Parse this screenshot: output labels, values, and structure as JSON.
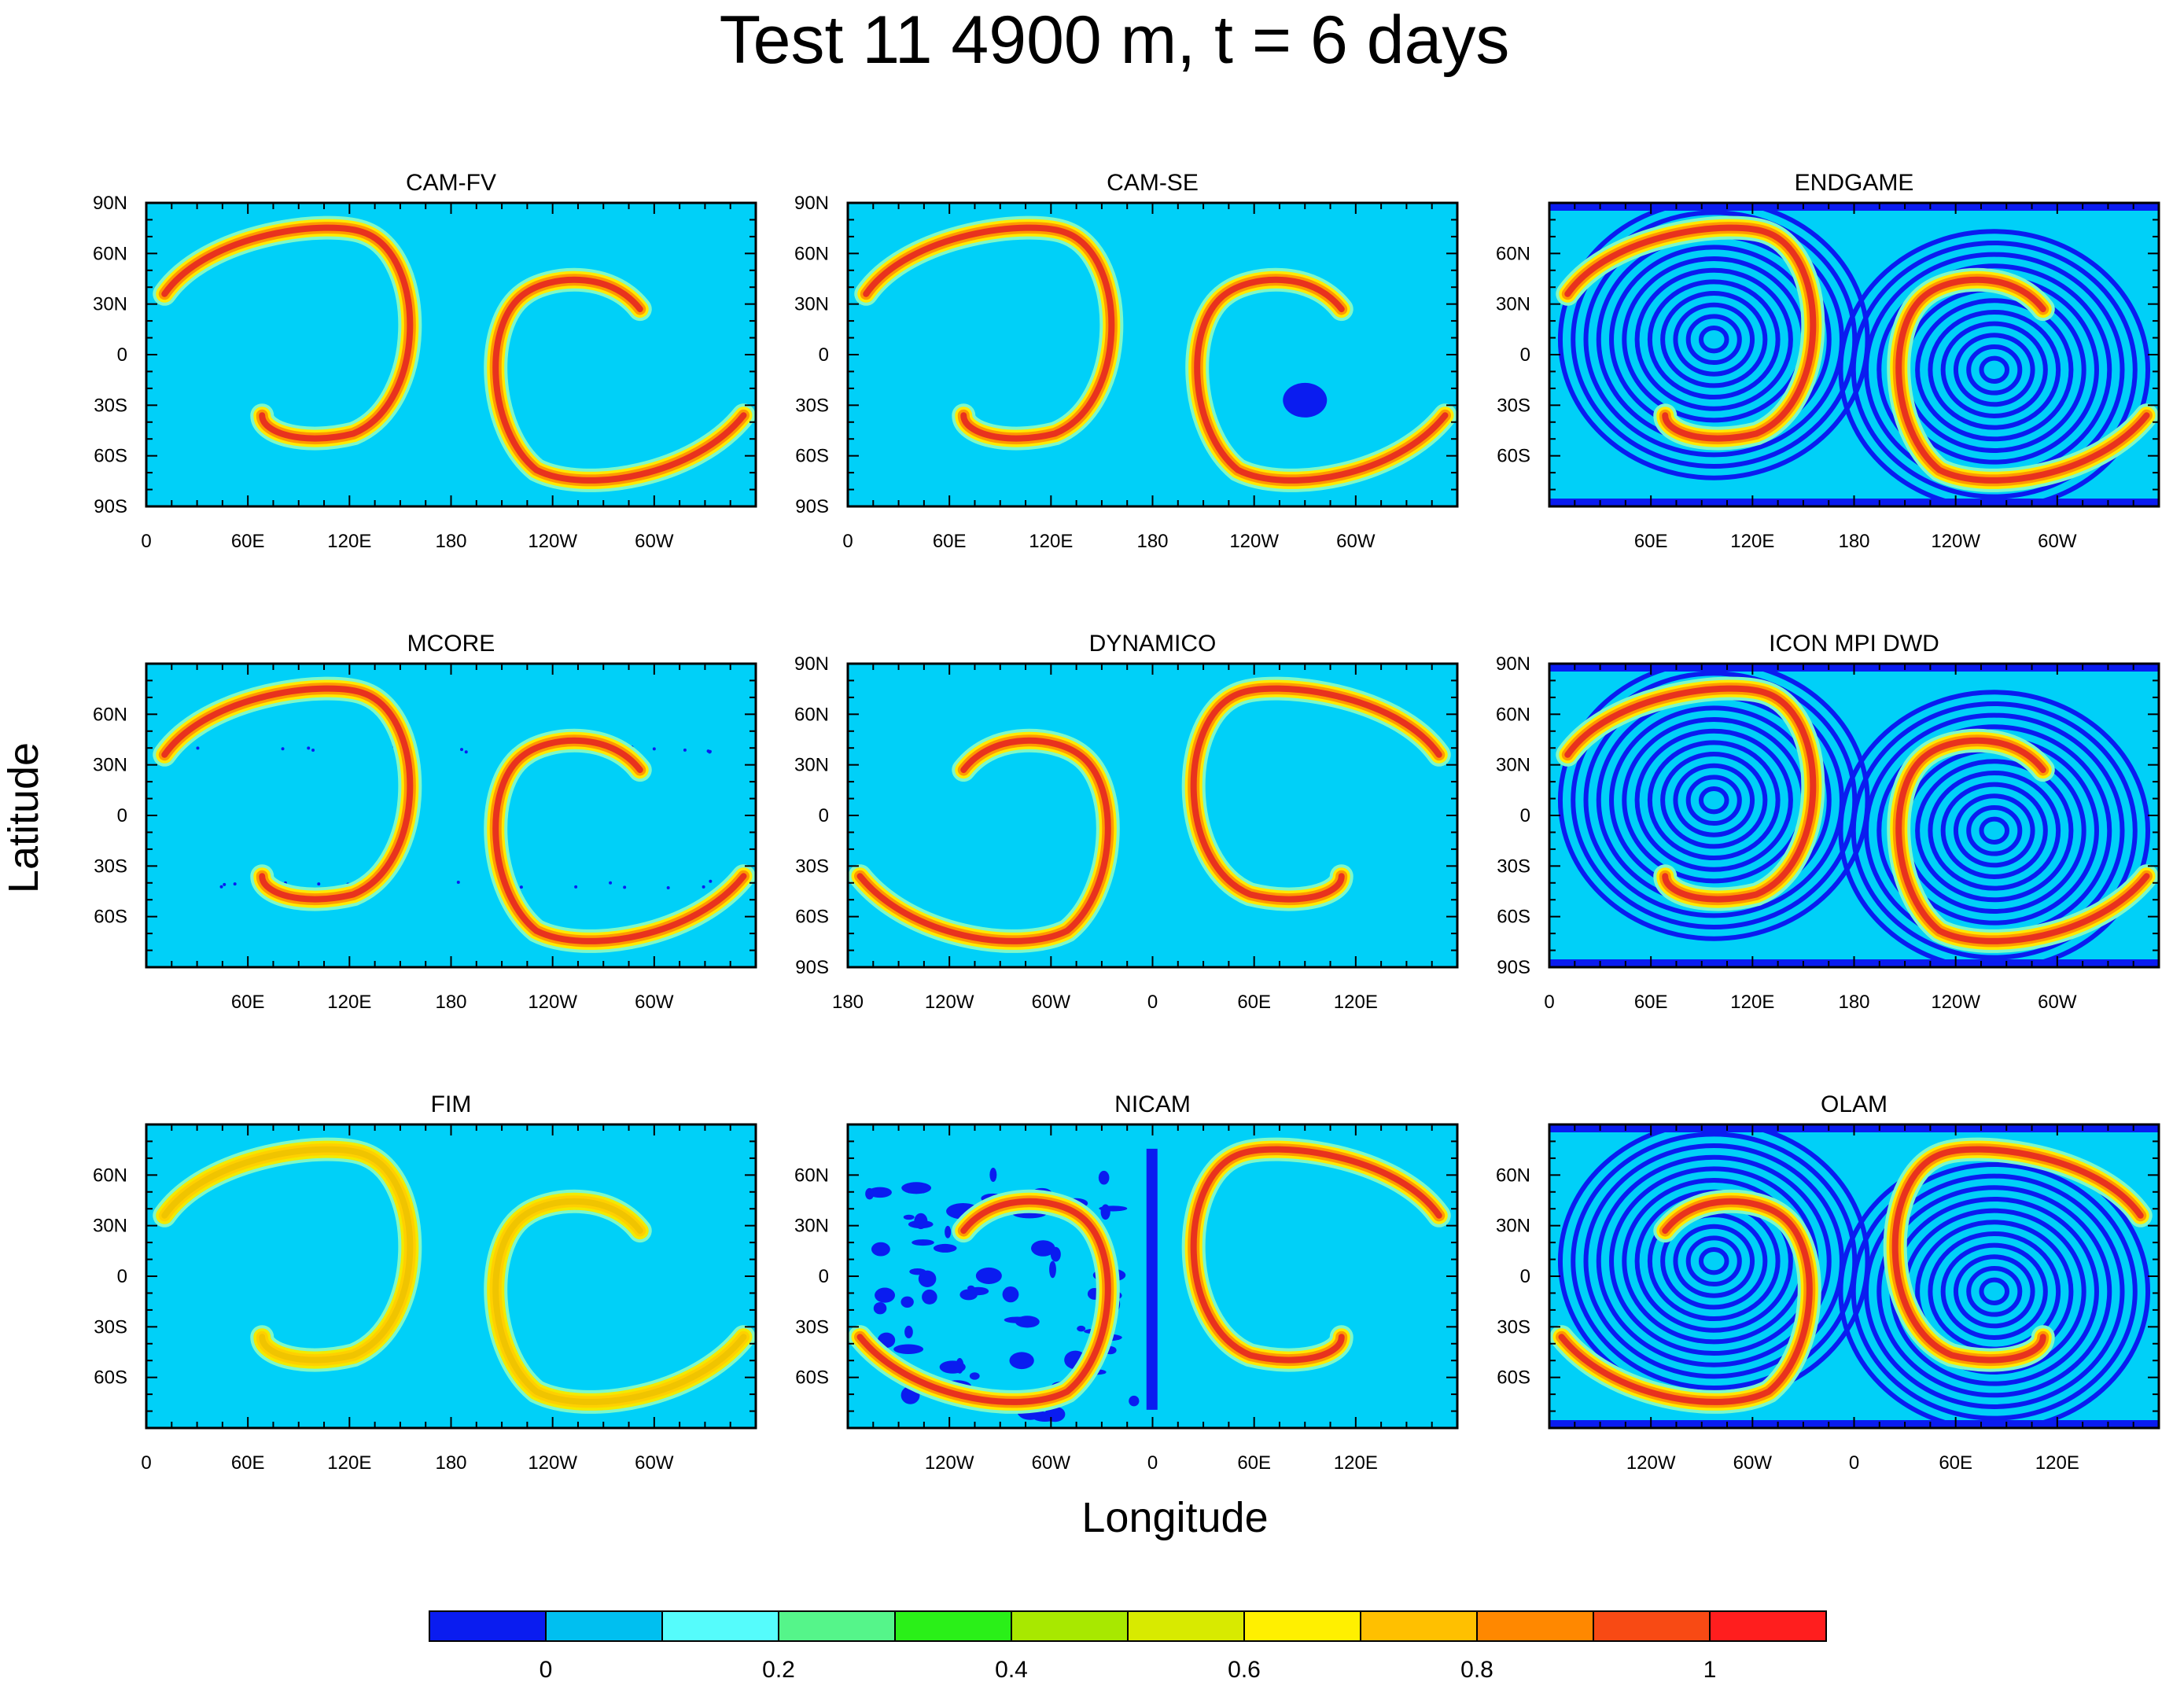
{
  "figure": {
    "title": "Test 11 4900 m, t = 6 days",
    "xlabel": "Longitude",
    "ylabel": "Latitude"
  },
  "colorbar": {
    "colors": [
      "#0a1cf0",
      "#00bff0",
      "#55fcfc",
      "#55f58a",
      "#2af018",
      "#a8e800",
      "#d8ea00",
      "#fff000",
      "#ffc000",
      "#ff8800",
      "#f84a14",
      "#ff1e1e"
    ],
    "tick_labels": [
      "0",
      "0.2",
      "0.4",
      "0.6",
      "0.8",
      "1"
    ],
    "tick_values": [
      0,
      0.2,
      0.4,
      0.6,
      0.8,
      1
    ]
  },
  "chart_data": [
    {
      "type": "heatmap",
      "title": "CAM-FV",
      "xticks": [
        "0",
        "60E",
        "120E",
        "180",
        "120W",
        "60W"
      ],
      "yticks": [
        "90N",
        "60N",
        "30N",
        "0",
        "30S",
        "60S",
        "90S"
      ],
      "background_value": 0.1,
      "background": "#00d0f8",
      "peak_value": 1.0,
      "noise": "none",
      "shift": false
    },
    {
      "type": "heatmap",
      "title": "CAM-SE",
      "xticks": [
        "0",
        "60E",
        "120E",
        "180",
        "120W",
        "60W"
      ],
      "yticks": [
        "90N",
        "60N",
        "30N",
        "0",
        "30S",
        "60S",
        "90S"
      ],
      "background_value": 0.1,
      "background": "#00d0f8",
      "peak_value": 1.0,
      "noise": "blob",
      "shift": false
    },
    {
      "type": "heatmap",
      "title": "ENDGAME",
      "xticks": [
        "60E",
        "120E",
        "180",
        "120W",
        "60W"
      ],
      "yticks": [
        "60N",
        "30N",
        "0",
        "30S",
        "60S"
      ],
      "background_value": 0.1,
      "background": "#00d0f8",
      "peak_value": 1.0,
      "noise": "swirl",
      "shift": false
    },
    {
      "type": "heatmap",
      "title": "MCORE",
      "xticks": [
        "60E",
        "120E",
        "180",
        "120W",
        "60W"
      ],
      "yticks": [
        "60N",
        "30N",
        "0",
        "30S",
        "60S"
      ],
      "background_value": 0.1,
      "background": "#00d0f8",
      "peak_value": 1.0,
      "noise": "dots",
      "shift": false
    },
    {
      "type": "heatmap",
      "title": "DYNAMICO",
      "xticks": [
        "180",
        "120W",
        "60W",
        "0",
        "60E",
        "120E"
      ],
      "yticks": [
        "90N",
        "60N",
        "30N",
        "0",
        "30S",
        "60S",
        "90S"
      ],
      "background_value": 0.1,
      "background": "#00d0f8",
      "peak_value": 1.0,
      "noise": "none",
      "shift": true
    },
    {
      "type": "heatmap",
      "title": "ICON MPI DWD",
      "xticks": [
        "0",
        "60E",
        "120E",
        "180",
        "120W",
        "60W"
      ],
      "yticks": [
        "90N",
        "60N",
        "30N",
        "0",
        "30S",
        "60S",
        "90S"
      ],
      "background_value": 0.1,
      "background": "#00d0f8",
      "peak_value": 1.0,
      "noise": "swirl",
      "shift": false
    },
    {
      "type": "heatmap",
      "title": "FIM",
      "xticks": [
        "0",
        "60E",
        "120E",
        "180",
        "120W",
        "60W"
      ],
      "yticks": [
        "60N",
        "30N",
        "0",
        "30S",
        "60S"
      ],
      "background_value": 0.1,
      "background": "#00d0f8",
      "peak_value": 0.7,
      "noise": "none",
      "shift": false
    },
    {
      "type": "heatmap",
      "title": "NICAM",
      "xticks": [
        "120W",
        "60W",
        "0",
        "60E",
        "120E"
      ],
      "yticks": [
        "60N",
        "30N",
        "0",
        "30S",
        "60S"
      ],
      "background_value": 0.1,
      "background": "#00d0f8",
      "peak_value": 1.0,
      "noise": "patches",
      "shift": true
    },
    {
      "type": "heatmap",
      "title": "OLAM",
      "xticks": [
        "120W",
        "60W",
        "0",
        "60E",
        "120E"
      ],
      "yticks": [
        "60N",
        "30N",
        "0",
        "30S",
        "60S"
      ],
      "background_value": 0.1,
      "background": "#00d0f8",
      "peak_value": 1.0,
      "noise": "swirl",
      "shift": true
    }
  ]
}
